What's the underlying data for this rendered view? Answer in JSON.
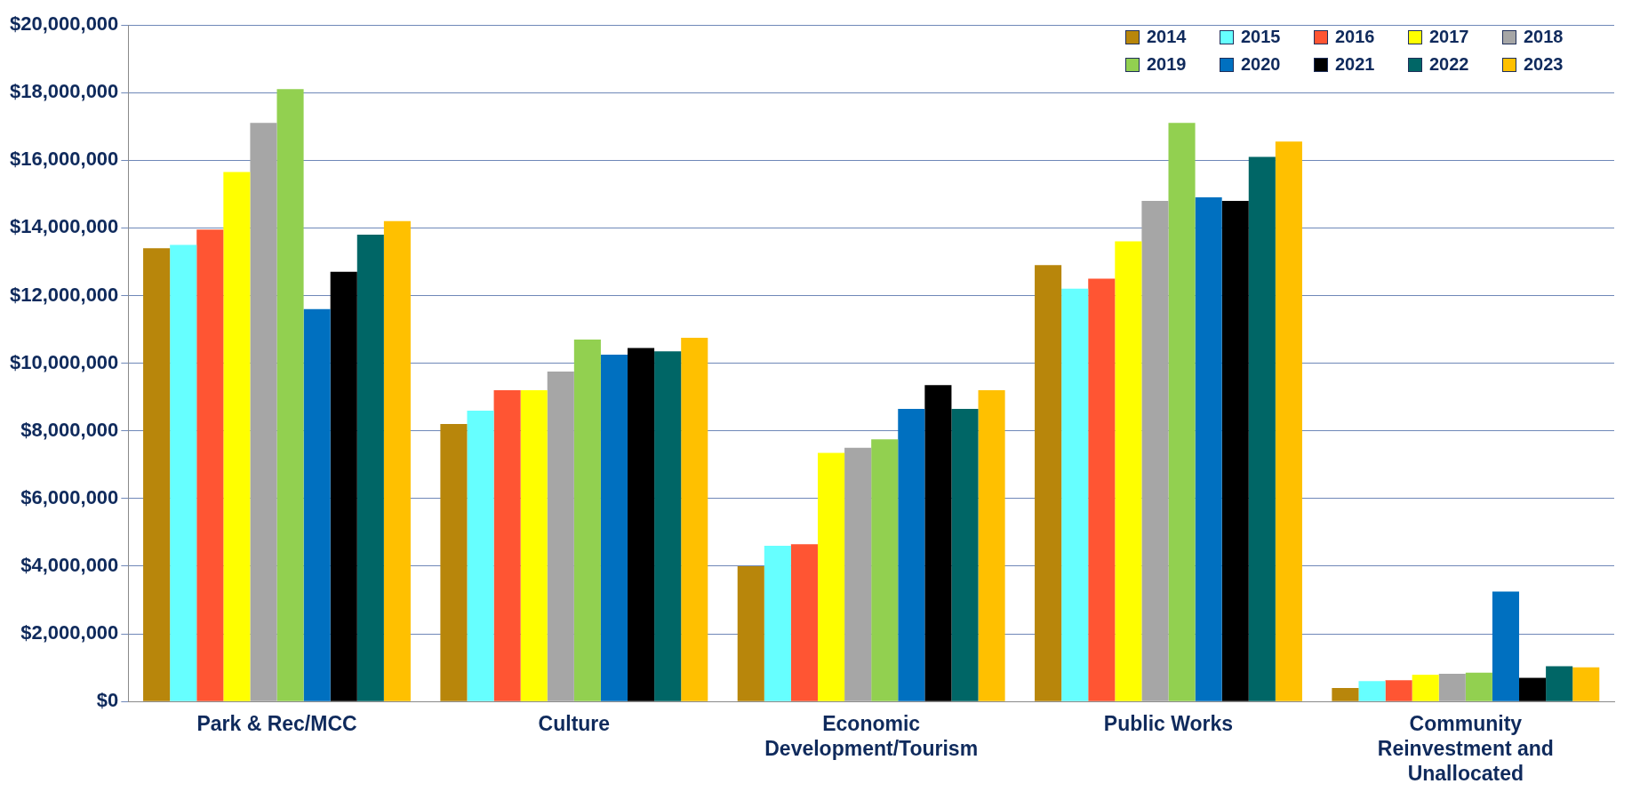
{
  "chart_data": {
    "type": "bar",
    "categories": [
      "Park & Rec/MCC",
      "Culture",
      "Economic Development/Tourism",
      "Public Works",
      "Community Reinvestment and Unallocated"
    ],
    "series": [
      {
        "name": "2014",
        "color": "#b8860b",
        "values": [
          13400000,
          8200000,
          4000000,
          12900000,
          400000
        ]
      },
      {
        "name": "2015",
        "color": "#66ffff",
        "values": [
          13500000,
          8600000,
          4600000,
          12200000,
          600000
        ]
      },
      {
        "name": "2016",
        "color": "#ff5533",
        "values": [
          13950000,
          9200000,
          4650000,
          12500000,
          630000
        ]
      },
      {
        "name": "2017",
        "color": "#ffff00",
        "values": [
          15650000,
          9200000,
          7350000,
          13600000,
          790000
        ]
      },
      {
        "name": "2018",
        "color": "#a6a6a6",
        "values": [
          17100000,
          9750000,
          7500000,
          14800000,
          820000
        ]
      },
      {
        "name": "2019",
        "color": "#92d050",
        "values": [
          18100000,
          10700000,
          7750000,
          17100000,
          850000
        ]
      },
      {
        "name": "2020",
        "color": "#0070c0",
        "values": [
          11600000,
          10250000,
          8650000,
          14900000,
          3250000
        ]
      },
      {
        "name": "2021",
        "color": "#000000",
        "values": [
          12700000,
          10450000,
          9350000,
          14800000,
          700000
        ]
      },
      {
        "name": "2022",
        "color": "#006666",
        "values": [
          13800000,
          10350000,
          8650000,
          16100000,
          1040000
        ]
      },
      {
        "name": "2023",
        "color": "#ffc000",
        "values": [
          14200000,
          10750000,
          9200000,
          16550000,
          1010000
        ]
      }
    ],
    "ylim": [
      0,
      20000000
    ],
    "yticks": [
      {
        "value": 0,
        "label": "$0"
      },
      {
        "value": 2000000,
        "label": "$2,000,000"
      },
      {
        "value": 4000000,
        "label": "$4,000,000"
      },
      {
        "value": 6000000,
        "label": "$6,000,000"
      },
      {
        "value": 8000000,
        "label": "$8,000,000"
      },
      {
        "value": 10000000,
        "label": "$10,000,000"
      },
      {
        "value": 12000000,
        "label": "$12,000,000"
      },
      {
        "value": 14000000,
        "label": "$14,000,000"
      },
      {
        "value": 16000000,
        "label": "$16,000,000"
      },
      {
        "value": 18000000,
        "label": "$18,000,000"
      },
      {
        "value": 20000000,
        "label": "$20,000,000"
      }
    ],
    "grid": "y",
    "legend": "top right"
  }
}
